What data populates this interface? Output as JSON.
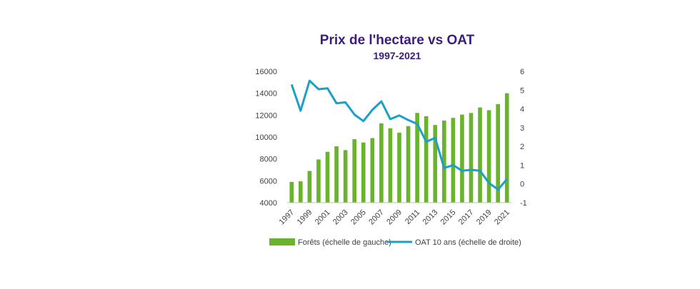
{
  "chart_data": {
    "type": "bar+line",
    "title": "Prix de l'hectare vs OAT",
    "subtitle": "1997-2021",
    "x": [
      1997,
      1998,
      1999,
      2000,
      2001,
      2002,
      2003,
      2004,
      2005,
      2006,
      2007,
      2008,
      2009,
      2010,
      2011,
      2012,
      2013,
      2014,
      2015,
      2016,
      2017,
      2018,
      2019,
      2020,
      2021
    ],
    "x_tick_labels": [
      "1997",
      "1999",
      "2001",
      "2003",
      "2005",
      "2007",
      "2009",
      "2011",
      "2013",
      "2015",
      "2017",
      "2019",
      "2021"
    ],
    "series": [
      {
        "name": "Forêts (échelle de gauche)",
        "type": "bar",
        "axis": "left",
        "color": "#6ab42d",
        "values": [
          5900,
          5950,
          6900,
          7950,
          8650,
          9150,
          8800,
          9800,
          9500,
          9900,
          11250,
          10800,
          10400,
          11000,
          12200,
          11900,
          11100,
          11500,
          11750,
          12050,
          12200,
          12700,
          12450,
          13000,
          14000
        ]
      },
      {
        "name": "OAT 10 ans (échelle de droite)",
        "type": "line",
        "axis": "right",
        "color": "#1ba1c5",
        "values": [
          5.3,
          3.9,
          5.5,
          5.05,
          5.1,
          4.3,
          4.35,
          3.7,
          3.35,
          3.95,
          4.4,
          3.45,
          3.65,
          3.4,
          3.2,
          2.25,
          2.45,
          0.85,
          1.0,
          0.7,
          0.75,
          0.7,
          0.05,
          -0.3,
          0.25
        ]
      }
    ],
    "y_left": {
      "min": 4000,
      "max": 16000,
      "step": 2000,
      "tick_labels": [
        "4000",
        "6000",
        "8000",
        "10000",
        "12000",
        "14000",
        "16000"
      ]
    },
    "y_right": {
      "min": -1,
      "max": 6,
      "step": 1,
      "tick_labels": [
        "-1",
        "0",
        "1",
        "2",
        "3",
        "4",
        "5",
        "6"
      ]
    },
    "grid": false,
    "legend_position": "bottom"
  }
}
